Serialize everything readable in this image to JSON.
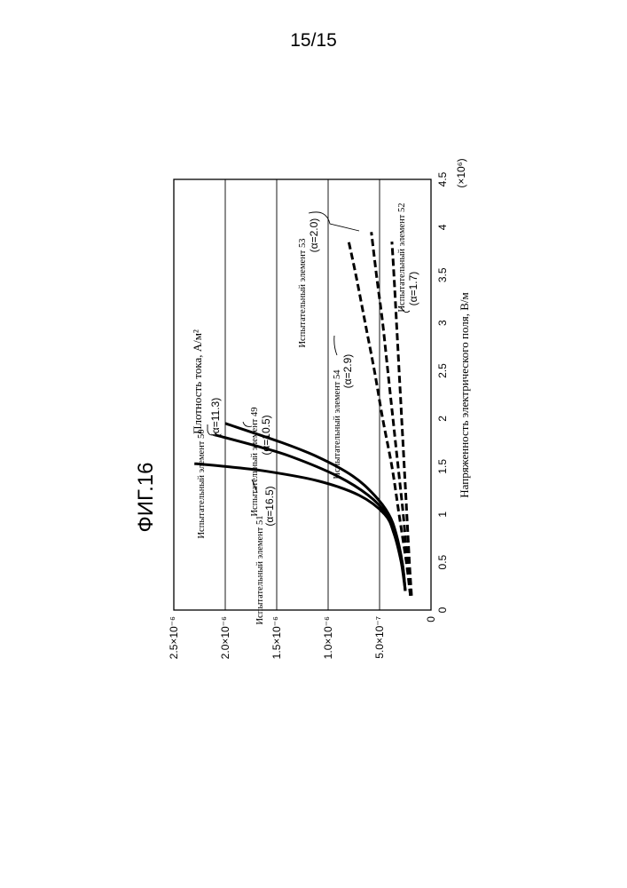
{
  "page_number": "15/15",
  "figure_label": "ФИГ.16",
  "chart_data": {
    "type": "line",
    "title": "",
    "xlabel": "Напряженность электрического поля, В/м",
    "ylabel": "Плотность тока, А/м²",
    "x_multiplier": "(×10⁶)",
    "xlim": [
      0,
      4.5
    ],
    "ylim": [
      0,
      2.5e-06
    ],
    "x_ticks": [
      {
        "value": 0,
        "label": "0"
      },
      {
        "value": 0.5,
        "label": "0.5"
      },
      {
        "value": 1,
        "label": "1"
      },
      {
        "value": 1.5,
        "label": "1.5"
      },
      {
        "value": 2,
        "label": "2"
      },
      {
        "value": 2.5,
        "label": "2.5"
      },
      {
        "value": 3,
        "label": "3"
      },
      {
        "value": 3.5,
        "label": "3.5"
      },
      {
        "value": 4,
        "label": "4"
      },
      {
        "value": 4.5,
        "label": "4.5"
      }
    ],
    "y_ticks": [
      {
        "value": 0,
        "label": "0"
      },
      {
        "value": 5e-07,
        "label": "5.0×10⁻⁷"
      },
      {
        "value": 1e-06,
        "label": "1.0×10⁻⁶"
      },
      {
        "value": 1.5e-06,
        "label": "1.5×10⁻⁶"
      },
      {
        "value": 2e-06,
        "label": "2.0×10⁻⁶"
      },
      {
        "value": 2.5e-06,
        "label": "2.5×10⁻⁶"
      }
    ],
    "grid": "horizontal",
    "orientation": "rotated-90-ccw",
    "series": [
      {
        "name": "Испытательный элемент 50",
        "alpha": "(α=11.3)",
        "style": "solid",
        "x": [
          0.2,
          0.5,
          0.8,
          1.0,
          1.2,
          1.4,
          1.6,
          1.75,
          1.95
        ],
        "y": [
          2.5e-07,
          2.8e-07,
          3.4e-07,
          4.1e-07,
          5.5e-07,
          7.6e-07,
          1.1e-06,
          1.45e-06,
          2e-06
        ]
      },
      {
        "name": "Испытательный элемент 49",
        "alpha": "(α=10.5)",
        "style": "solid",
        "x": [
          0.2,
          0.5,
          0.8,
          1.0,
          1.2,
          1.4,
          1.6,
          1.7,
          1.83
        ],
        "y": [
          2.5e-07,
          2.8e-07,
          3.5e-07,
          4.3e-07,
          6.1e-07,
          9.1e-07,
          1.35e-06,
          1.65e-06,
          2.1e-06
        ]
      },
      {
        "name": "Испытательный элемент 51",
        "alpha": "(α=16.5)",
        "style": "solid",
        "x": [
          0.2,
          0.5,
          0.8,
          1.0,
          1.2,
          1.35,
          1.45,
          1.5,
          1.53
        ],
        "y": [
          2.5e-07,
          2.9e-07,
          3.6e-07,
          4.5e-07,
          7e-07,
          1.1e-06,
          1.6e-06,
          2e-06,
          2.3e-06
        ]
      },
      {
        "name": "Испытательный элемент 54",
        "alpha": "(α=2.9)",
        "style": "dashed",
        "x": [
          0.15,
          0.5,
          1.0,
          1.5,
          2.0,
          2.5,
          3.0,
          3.5,
          3.85
        ],
        "y": [
          2e-07,
          2.4e-07,
          3.1e-07,
          3.8e-07,
          4.7e-07,
          5.5e-07,
          6.4e-07,
          7.3e-07,
          8e-07
        ]
      },
      {
        "name": "Испытательный элемент 53",
        "alpha": "(α=2.0)",
        "style": "dashed",
        "x": [
          0.15,
          0.5,
          1.0,
          1.5,
          2.0,
          2.5,
          3.0,
          3.5,
          3.95
        ],
        "y": [
          2e-07,
          2.3e-07,
          2.7e-07,
          3.2e-07,
          3.7e-07,
          4.2e-07,
          4.7e-07,
          5.3e-07,
          5.8e-07
        ]
      },
      {
        "name": "Испытательный элемент 52",
        "alpha": "(α=1.7)",
        "style": "dashed",
        "x": [
          0.15,
          0.5,
          1.0,
          1.5,
          2.0,
          2.5,
          3.0,
          3.5,
          3.85
        ],
        "y": [
          1.9e-07,
          2.1e-07,
          2.35e-07,
          2.6e-07,
          2.85e-07,
          3.1e-07,
          3.35e-07,
          3.6e-07,
          3.8e-07
        ]
      }
    ]
  }
}
